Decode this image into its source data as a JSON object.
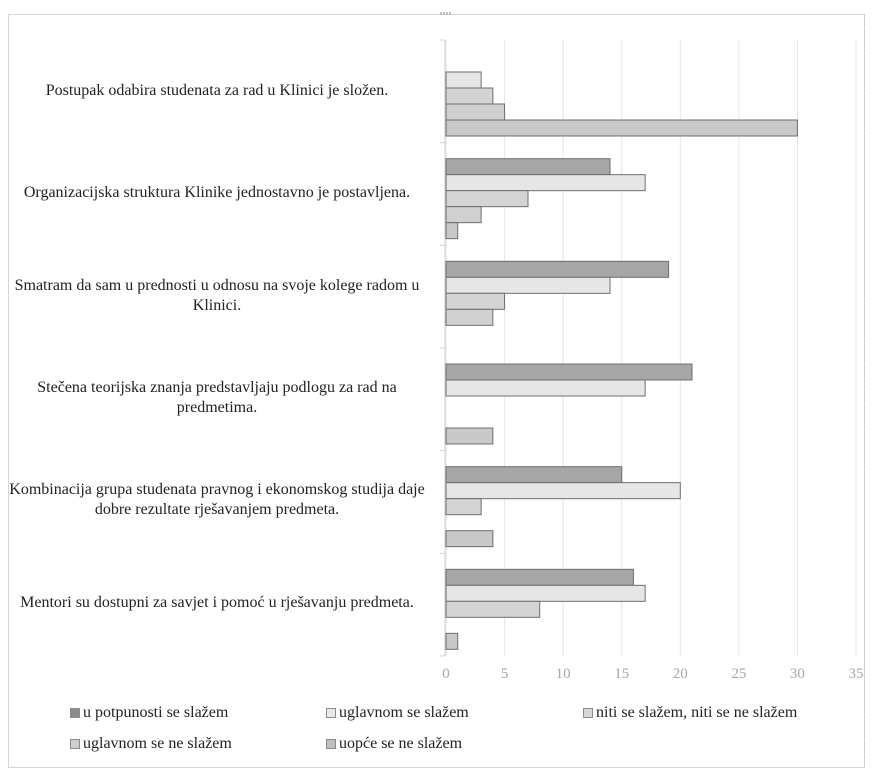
{
  "chart_data": {
    "type": "bar",
    "orientation": "horizontal",
    "categories": [
      "Postupak odabira studenata za rad u Klinici je složen.",
      "Organizacijska struktura Klinike jednostavno je postavljena.",
      "Smatram da sam u prednosti u odnosu na svoje kolege radom u Klinici.",
      "Stečena teorijska znanja predstavljaju podlogu za rad na predmetima.",
      "Kombinacija grupa studenata pravnog i ekonomskog studija daje dobre rezultate rješavanjem predmeta.",
      "Mentori su dostupni za savjet i pomoć u rješavanju predmeta."
    ],
    "series": [
      {
        "name": "u potpunosti se slažem",
        "color": "#a6a6a6",
        "values": [
          0,
          14,
          19,
          21,
          15,
          16
        ]
      },
      {
        "name": "uglavnom se slažem",
        "color": "#e6e6e6",
        "values": [
          3,
          17,
          14,
          17,
          20,
          17
        ]
      },
      {
        "name": "niti se slažem, niti se ne slažem",
        "color": "#d4d4d4",
        "values": [
          4,
          7,
          5,
          0,
          3,
          8
        ]
      },
      {
        "name": "uglavnom se ne slažem",
        "color": "#d0d0d0",
        "values": [
          5,
          3,
          4,
          0,
          0,
          0
        ]
      },
      {
        "name": "uopće se ne slažem",
        "color": "#c8c8c8",
        "values": [
          30,
          1,
          0,
          4,
          4,
          1
        ]
      }
    ],
    "xlim": [
      0,
      35
    ],
    "xticks": [
      "0",
      "5",
      "10",
      "15",
      "20",
      "25",
      "30",
      "35"
    ],
    "grid": true,
    "legend_position": "bottom"
  }
}
